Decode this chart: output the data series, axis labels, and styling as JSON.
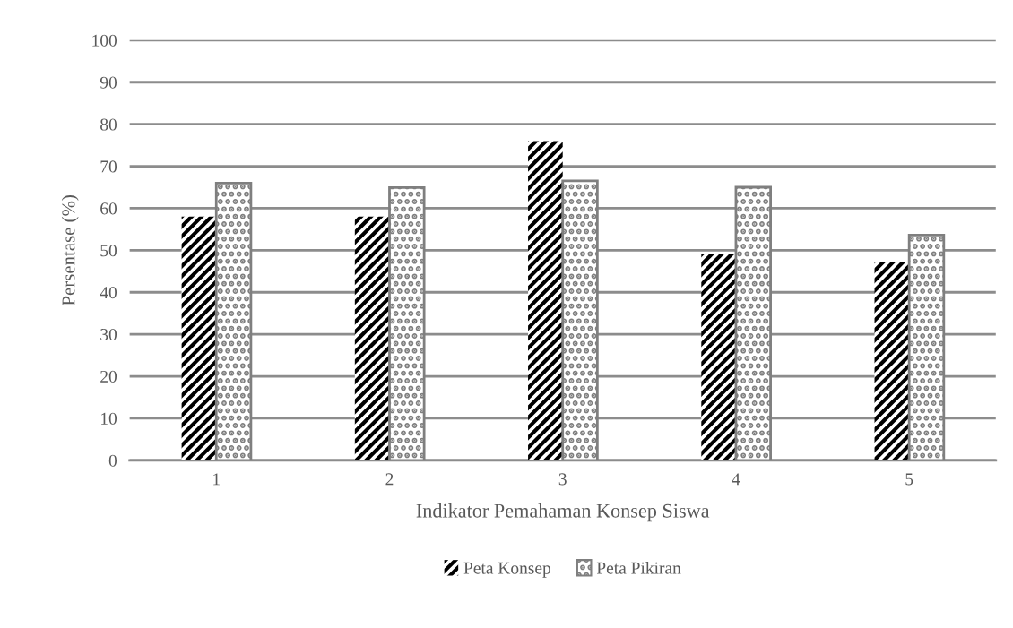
{
  "chart_data": {
    "type": "bar",
    "xlabel": "Indikator Pemahaman Konsep Siswa",
    "ylabel": "Persentase (%)",
    "categories": [
      "1",
      "2",
      "3",
      "4",
      "5"
    ],
    "series": [
      {
        "name": "Peta Konsep",
        "color": "#000000",
        "values": [
          58,
          58,
          76,
          49.2,
          47.1
        ]
      },
      {
        "name": "Peta Pikiran",
        "color": "#7f7f7f",
        "values": [
          66,
          64.9,
          66.5,
          65,
          53.6
        ]
      }
    ],
    "ylim": [
      0,
      100
    ],
    "yticks": [
      0,
      10,
      20,
      30,
      40,
      50,
      60,
      70,
      80,
      90,
      100
    ],
    "grid": "y",
    "legend": "bottom"
  }
}
